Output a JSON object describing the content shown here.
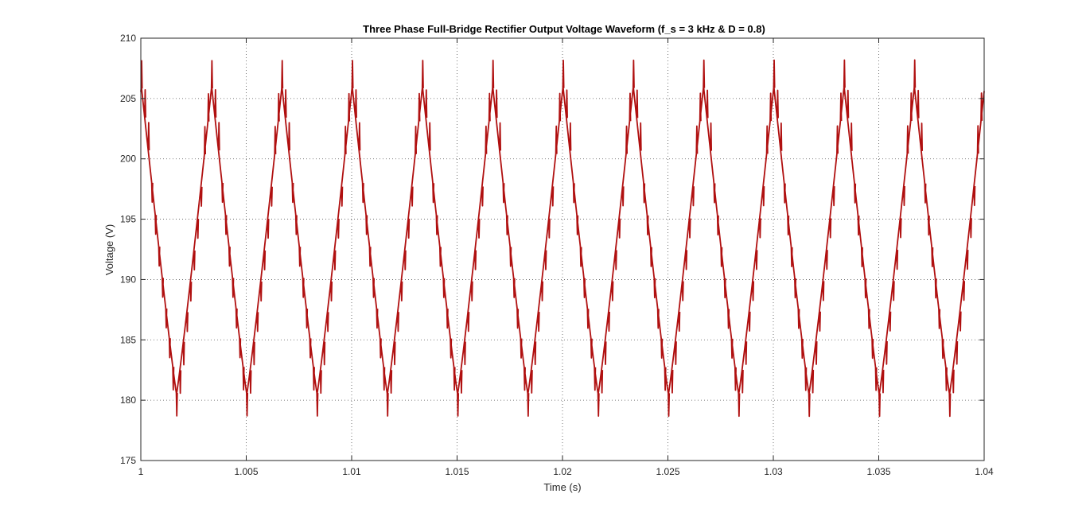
{
  "chart_data": {
    "type": "line",
    "title": "Three Phase Full-Bridge Rectifier Output Voltage Waveform (f_s = 3 kHz & D = 0.8)",
    "xlabel": "Time (s)",
    "ylabel": "Voltage (V)",
    "xlim": [
      1,
      1.04
    ],
    "ylim": [
      175,
      210
    ],
    "xticks": [
      1,
      1.005,
      1.01,
      1.015,
      1.02,
      1.025,
      1.03,
      1.035,
      1.04
    ],
    "xtick_labels": [
      "1",
      "1.005",
      "1.01",
      "1.015",
      "1.02",
      "1.025",
      "1.03",
      "1.035",
      "1.04"
    ],
    "yticks": [
      175,
      180,
      185,
      190,
      195,
      200,
      205,
      210
    ],
    "ytick_labels": [
      "175",
      "180",
      "185",
      "190",
      "195",
      "200",
      "205",
      "210"
    ],
    "grid": true,
    "line_color": "#b01010",
    "waveform": {
      "description_shape": "triangular ripple with switching spikes",
      "period": 0.003333,
      "first_peak_time": 1.00336,
      "peak_value": 206,
      "trough_value": 180.5,
      "spike_max": 208,
      "spike_min": 178.8
    },
    "series": [
      {
        "values_x": [
          1.0,
          1.00167,
          1.00336,
          1.00503,
          1.0067,
          1.00836,
          1.01003,
          1.0117,
          1.01336,
          1.01503,
          1.0167,
          1.01836,
          1.02003,
          1.0217,
          1.02336,
          1.02503,
          1.0267,
          1.02836,
          1.03003,
          1.0317,
          1.03336,
          1.03503,
          1.0367,
          1.03836,
          1.04
        ],
        "values_y": [
          206,
          180.5,
          206,
          180.5,
          206,
          180.5,
          206,
          180.5,
          206,
          180.5,
          206,
          180.5,
          206,
          180.5,
          206,
          180.5,
          206,
          180.5,
          206,
          180.5,
          206,
          180.5,
          206,
          180.5,
          206
        ]
      }
    ]
  }
}
